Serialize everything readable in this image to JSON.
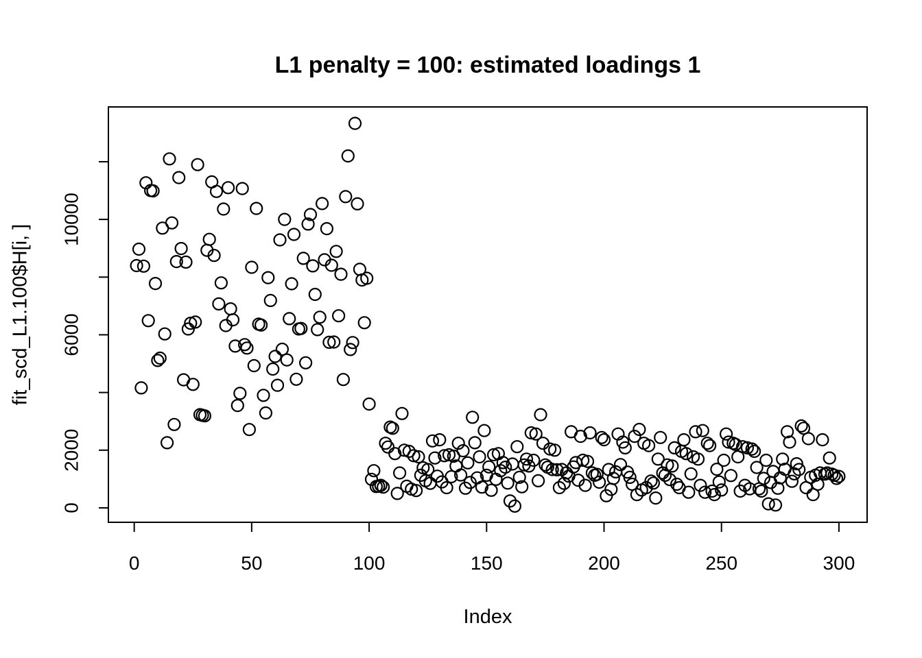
{
  "figure": {
    "title": "L1 penalty = 100: estimated loadings 1",
    "background_color": "#ffffff",
    "foreground_color": "#000000"
  },
  "chart_data": {
    "type": "scatter",
    "title": "L1 penalty = 100: estimated loadings 1",
    "xlabel": "Index",
    "ylabel": "fit_scd_L1.100$H[i, ]",
    "marker": "open-circle",
    "marker_color": "#000000",
    "grid": false,
    "legend": "none",
    "xlim": [
      -11,
      312
    ],
    "ylim": [
      -500,
      13900
    ],
    "x_ticks": [
      {
        "value": 0,
        "label": "0"
      },
      {
        "value": 50,
        "label": "50"
      },
      {
        "value": 100,
        "label": "100"
      },
      {
        "value": 150,
        "label": "150"
      },
      {
        "value": 200,
        "label": "200"
      },
      {
        "value": 250,
        "label": "250"
      },
      {
        "value": 300,
        "label": "300"
      }
    ],
    "y_ticks": [
      {
        "value": 0,
        "label": "0"
      },
      {
        "value": 2000,
        "label": "2000"
      },
      {
        "value": 4000,
        "label": ""
      },
      {
        "value": 6000,
        "label": "6000"
      },
      {
        "value": 8000,
        "label": ""
      },
      {
        "value": 10000,
        "label": "10000"
      },
      {
        "value": 12000,
        "label": ""
      }
    ],
    "x_description": "Index, 1 to 300 (one point per index)",
    "y_values": [
      8400,
      8970,
      4160,
      8380,
      11270,
      6490,
      11000,
      10990,
      7780,
      5110,
      5190,
      9700,
      6030,
      2260,
      12100,
      9880,
      2890,
      8540,
      11450,
      8990,
      4440,
      8520,
      6200,
      6400,
      4280,
      6440,
      11900,
      3230,
      3210,
      3190,
      8930,
      9310,
      11300,
      8750,
      10970,
      7070,
      7800,
      10360,
      6320,
      11100,
      6900,
      6520,
      5610,
      3550,
      3970,
      11070,
      5660,
      5540,
      2715,
      8340,
      4930,
      10380,
      6370,
      6340,
      3900,
      3290,
      7980,
      7190,
      4810,
      5250,
      4250,
      9290,
      5500,
      10000,
      5130,
      6560,
      7770,
      9480,
      4460,
      6200,
      6220,
      8650,
      5030,
      9840,
      10170,
      8390,
      7400,
      6180,
      6610,
      10550,
      8600,
      9680,
      5740,
      8410,
      5750,
      8890,
      6660,
      8100,
      4450,
      10790,
      12200,
      5490,
      5730,
      13330,
      10540,
      8270,
      7900,
      6420,
      7960,
      3600,
      990,
      1290,
      740,
      750,
      780,
      720,
      2240,
      2110,
      2800,
      2760,
      1880,
      500,
      1210,
      3270,
      2000,
      750,
      1960,
      650,
      1810,
      600,
      1770,
      1130,
      1390,
      940,
      1330,
      850,
      2320,
      1730,
      1100,
      2360,
      900,
      1810,
      700,
      1840,
      1080,
      1790,
      1450,
      2240,
      1140,
      1980,
      680,
      1560,
      880,
      3140,
      2260,
      1040,
      1770,
      720,
      2680,
      1130,
      1420,
      610,
      1840,
      990,
      1880,
      1290,
      1570,
      1410,
      860,
      240,
      1520,
      60,
      2120,
      1060,
      730,
      1490,
      1690,
      1450,
      2600,
      1650,
      2560,
      940,
      3230,
      2240,
      1490,
      1410,
      2040,
      1330,
      2000,
      1320,
      700,
      1330,
      850,
      1210,
      1100,
      2640,
      1420,
      1570,
      960,
      2480,
      1650,
      780,
      1610,
      2600,
      1210,
      1130,
      1160,
      890,
      2440,
      2360,
      420,
      1330,
      640,
      1020,
      1250,
      2560,
      1500,
      2280,
      2080,
      1240,
      1060,
      820,
      2480,
      460,
      2720,
      620,
      2240,
      700,
      2160,
      930,
      860,
      340,
      1690,
      2440,
      1210,
      1130,
      1490,
      980,
      1450,
      2080,
      820,
      700,
      1960,
      2360,
      1880,
      540,
      1180,
      1770,
      2640,
      1690,
      780,
      2680,
      540,
      2240,
      2160,
      580,
      460,
      1340,
      900,
      620,
      1650,
      2560,
      2280,
      1120,
      2240,
      2200,
      1770,
      580,
      2120,
      780,
      2080,
      660,
      2040,
      1960,
      1400,
      660,
      580,
      1020,
      1650,
      140,
      880,
      1260,
      100,
      680,
      1040,
      1690,
      1340,
      2640,
      2280,
      920,
      1180,
      1530,
      1330,
      2840,
      2760,
      700,
      2400,
      1060,
      460,
      1130,
      820,
      1210,
      2360,
      1170,
      1210,
      1730,
      1170,
      1130,
      1020,
      1090
    ]
  }
}
